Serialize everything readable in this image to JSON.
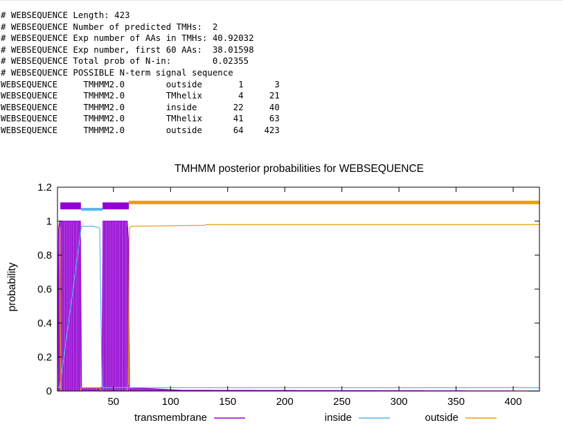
{
  "summary": {
    "lines": [
      "# WEBSEQUENCE Length: 423",
      "# WEBSEQUENCE Number of predicted TMHs:  2",
      "# WEBSEQUENCE Exp number of AAs in TMHs: 40.92032",
      "# WEBSEQUENCE Exp number, first 60 AAs:  38.01598",
      "# WEBSEQUENCE Total prob of N-in:        0.02355",
      "# WEBSEQUENCE POSSIBLE N-term signal sequence"
    ],
    "table_rows": [
      {
        "seq": "WEBSEQUENCE",
        "method": "TMHMM2.0",
        "region": "outside",
        "start": "1",
        "end": "3"
      },
      {
        "seq": "WEBSEQUENCE",
        "method": "TMHMM2.0",
        "region": "TMhelix",
        "start": "4",
        "end": "21"
      },
      {
        "seq": "WEBSEQUENCE",
        "method": "TMHMM2.0",
        "region": "inside",
        "start": "22",
        "end": "40"
      },
      {
        "seq": "WEBSEQUENCE",
        "method": "TMHMM2.0",
        "region": "TMhelix",
        "start": "41",
        "end": "63"
      },
      {
        "seq": "WEBSEQUENCE",
        "method": "TMHMM2.0",
        "region": "outside",
        "start": "64",
        "end": "423"
      }
    ]
  },
  "chart_data": {
    "type": "line",
    "title": "TMHMM posterior probabilities for WEBSEQUENCE",
    "xlabel": "",
    "ylabel": "probability",
    "xlim": [
      1,
      423
    ],
    "ylim": [
      0,
      1.2
    ],
    "xticks": [
      50,
      100,
      150,
      200,
      250,
      300,
      350,
      400
    ],
    "yticks": [
      0,
      0.2,
      0.4,
      0.6,
      0.8,
      1,
      1.2
    ],
    "grid": false,
    "legend_placement": "bottom",
    "series": [
      {
        "name": "transmembrane",
        "color": "#9400d3",
        "style": "impulses",
        "points": [
          [
            1,
            0.02
          ],
          [
            2,
            0.96
          ],
          [
            3,
            1
          ],
          [
            21,
            1
          ],
          [
            22,
            0.02
          ],
          [
            40,
            0.02
          ],
          [
            41,
            1
          ],
          [
            62,
            1
          ],
          [
            63,
            0.9
          ],
          [
            64,
            0.02
          ],
          [
            110,
            0.004
          ],
          [
            130,
            0.004
          ],
          [
            423,
            0
          ]
        ]
      },
      {
        "name": "inside",
        "color": "#56b4e9",
        "style": "line",
        "points": [
          [
            1,
            0.02
          ],
          [
            3,
            0.02
          ],
          [
            22,
            0.97
          ],
          [
            32,
            0.97
          ],
          [
            38,
            0.96
          ],
          [
            40,
            0.02
          ],
          [
            62,
            0.02
          ],
          [
            63,
            0.02
          ],
          [
            423,
            0.02
          ]
        ]
      },
      {
        "name": "outside",
        "color": "#e69f00",
        "style": "line",
        "points": [
          [
            1,
            0.97
          ],
          [
            3,
            0.96
          ],
          [
            4,
            0
          ],
          [
            21,
            0
          ],
          [
            22,
            0.02
          ],
          [
            38,
            0.02
          ],
          [
            40,
            0
          ],
          [
            62,
            0
          ],
          [
            63,
            0.05
          ],
          [
            64,
            0.96
          ],
          [
            66,
            0.97
          ],
          [
            130,
            0.975
          ],
          [
            131,
            0.98
          ],
          [
            423,
            0.98
          ]
        ]
      }
    ],
    "topology_bars": [
      {
        "region": "TMhelix",
        "start": 4,
        "end": 21,
        "level": 1.09,
        "color": "#9400d3"
      },
      {
        "region": "inside",
        "start": 22,
        "end": 40,
        "level": 1.07,
        "color": "#56b4e9"
      },
      {
        "region": "TMhelix",
        "start": 41,
        "end": 63,
        "level": 1.09,
        "color": "#9400d3"
      },
      {
        "region": "outside",
        "start": 64,
        "end": 423,
        "level": 1.11,
        "color": "#e69f00"
      }
    ]
  }
}
